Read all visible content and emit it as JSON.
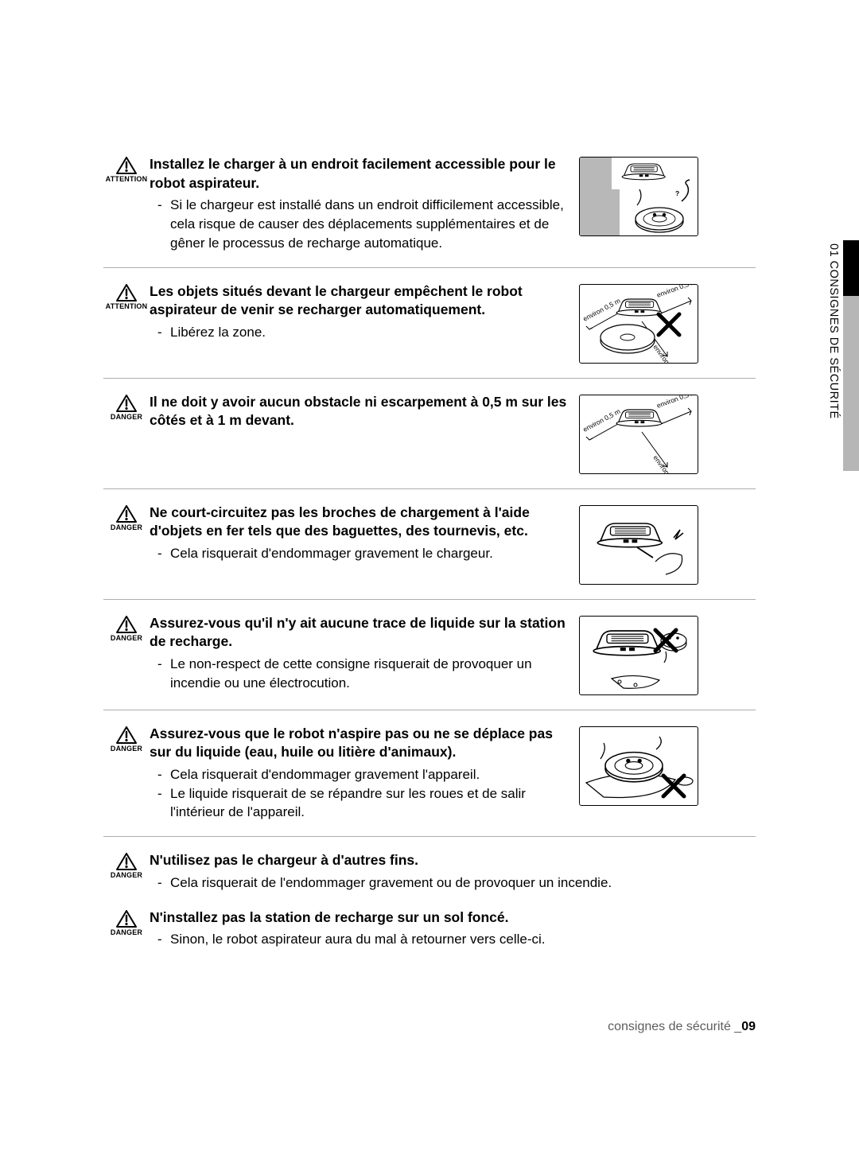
{
  "sidetab_label": "01  CONSIGNES DE SÉCURITÉ",
  "footer_text": "consignes de sécurité _",
  "footer_page": "09",
  "warn_levels": {
    "attention": "ATTENTION",
    "danger": "DANGER"
  },
  "measurements": {
    "side_dist": "environ 0,5 m",
    "front_dist": "environ 1 m"
  },
  "sections": [
    {
      "level": "attention",
      "title": "Installez le charger à un endroit facilement accessible pour le robot aspirateur.",
      "bullets": [
        "Si le chargeur est installé dans un endroit difficilement accessible, cela risque de causer des déplacements supplémentaires et de gêner le processus de recharge automatique."
      ],
      "illus": "confused"
    },
    {
      "level": "attention",
      "title": "Les objets situés devant le chargeur empêchent le robot aspirateur de venir se recharger automatiquement.",
      "bullets": [
        "Libérez la zone."
      ],
      "illus": "clearances_x"
    },
    {
      "level": "danger",
      "title": "Il ne doit y avoir aucun obstacle ni escarpement à 0,5 m sur les côtés et à 1 m devant.",
      "bullets": [],
      "illus": "clearances"
    },
    {
      "level": "danger",
      "title": "Ne court-circuitez pas les broches de chargement à l'aide d'objets en fer tels que des baguettes, des tournevis, etc.",
      "bullets": [
        "Cela risquerait d'endommager gravement le chargeur."
      ],
      "illus": "short"
    },
    {
      "level": "danger",
      "title": "Assurez-vous qu'il n'y ait aucune trace de liquide sur la station de recharge.",
      "bullets": [
        "Le non-respect de cette consigne risquerait de provoquer un incendie ou une électrocution."
      ],
      "illus": "wet_dock"
    },
    {
      "level": "danger",
      "title": "Assurez-vous que le robot n'aspire pas ou ne se déplace pas sur du liquide (eau, huile ou litière d'animaux).",
      "bullets": [
        "Cela risquerait d'endommager gravement l'appareil.",
        "Le liquide risquerait de se répandre sur les roues et de salir l'intérieur de l'appareil."
      ],
      "illus": "wet_floor"
    },
    {
      "level": "danger",
      "title": "N'utilisez pas le chargeur à d'autres fins.",
      "bullets": [
        "Cela risquerait de l'endommager gravement ou de provoquer un incendie."
      ],
      "illus": null
    },
    {
      "level": "danger",
      "title": "N'installez pas la station de recharge sur un sol foncé.",
      "bullets": [
        "Sinon, le robot aspirateur aura du mal à retourner vers celle-ci."
      ],
      "illus": null
    }
  ]
}
